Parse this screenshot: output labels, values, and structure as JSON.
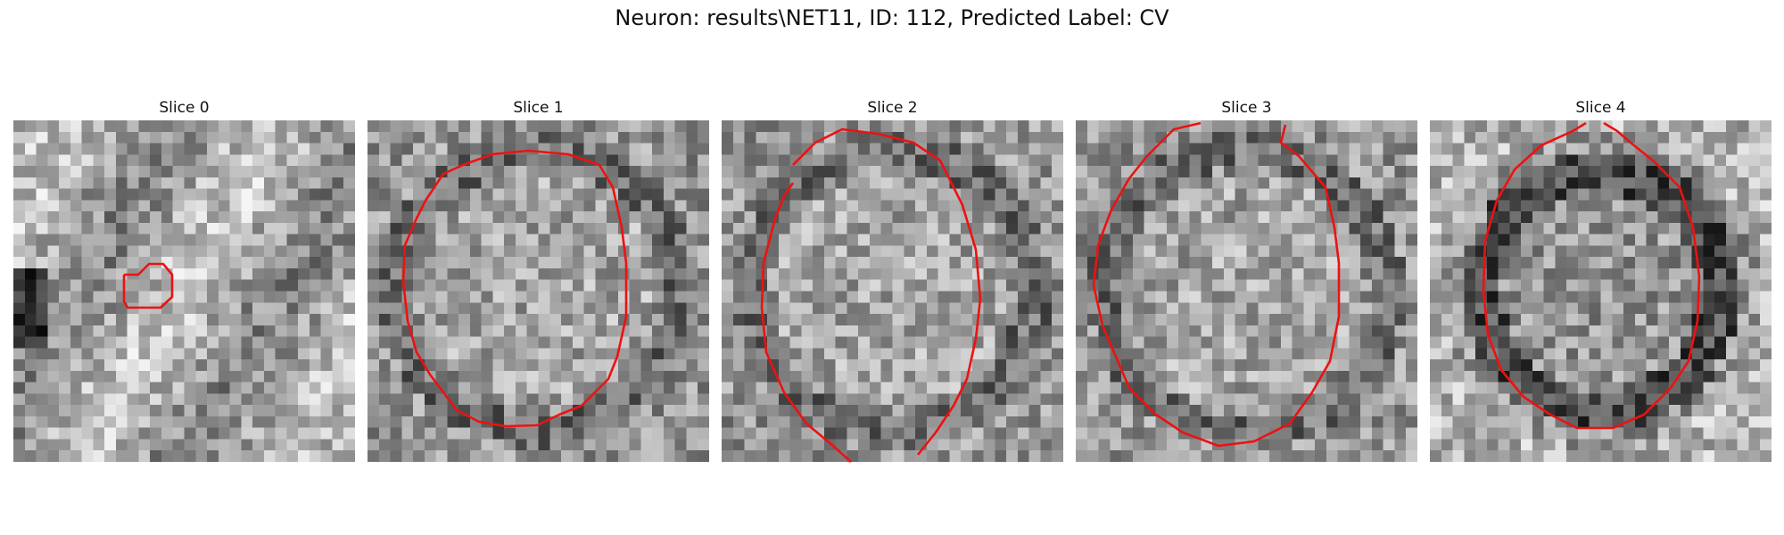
{
  "figure": {
    "suptitle": "Neuron: results\\NET11, ID: 112, Predicted Label: CV"
  },
  "panels": [
    {
      "title": "Slice 0",
      "has_contour": true
    },
    {
      "title": "Slice 1",
      "has_contour": true
    },
    {
      "title": "Slice 2",
      "has_contour": true
    },
    {
      "title": "Slice 3",
      "has_contour": true
    },
    {
      "title": "Slice 4",
      "has_contour": true
    }
  ],
  "colors": {
    "contour": "#ee1111",
    "colormap": "grayscale"
  }
}
